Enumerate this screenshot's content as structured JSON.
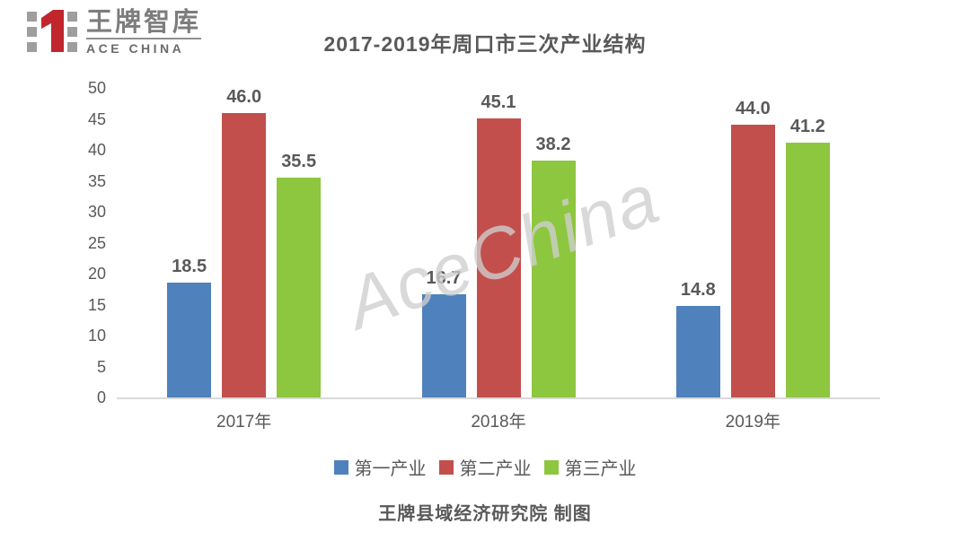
{
  "logo": {
    "brand_cn": "王牌智库",
    "brand_en": "ACE CHINA",
    "accent_red": "#c0262c",
    "square_gray": "#9e9e9e"
  },
  "watermark": {
    "text": "AceChina"
  },
  "footer": {
    "credit": "王牌县域经济研究院 制图"
  },
  "chart_data": {
    "type": "bar",
    "title": "2017-2019年周口市三次产业结构",
    "categories": [
      "2017年",
      "2018年",
      "2019年"
    ],
    "series": [
      {
        "name": "第一产业",
        "color": "#4F81BD",
        "values": [
          18.5,
          16.7,
          14.8
        ]
      },
      {
        "name": "第二产业",
        "color": "#C24F4C",
        "values": [
          46.0,
          45.1,
          44.0
        ]
      },
      {
        "name": "第三产业",
        "color": "#8DC63F",
        "values": [
          35.5,
          38.2,
          41.2
        ]
      }
    ],
    "xlabel": "",
    "ylabel": "",
    "ylim": [
      0,
      50
    ],
    "ytick_step": 5,
    "grid": false,
    "legend_position": "bottom",
    "value_labels": true,
    "text_color": "#595959",
    "axis_color": "#d9d9d9"
  }
}
